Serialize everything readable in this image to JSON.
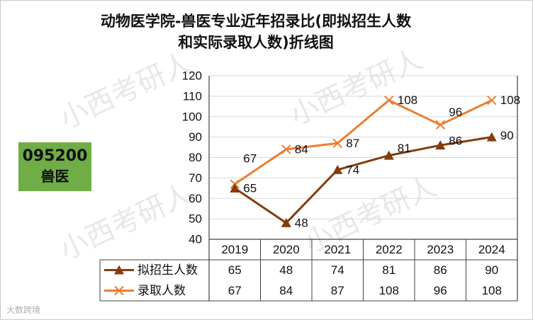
{
  "page": {
    "title_line1": "动物医学院-兽医专业近年招录比(即拟招生人数",
    "title_line2": "和实际录取人数)折线图",
    "badge_code": "095200",
    "badge_name": "兽医",
    "watermark": "小西考研人",
    "footer_mark": "大数跨境"
  },
  "chart_data": {
    "type": "line",
    "title": "动物医学院-兽医专业近年招录比(即拟招生人数和实际录取人数)折线图",
    "categories": [
      "2019",
      "2020",
      "2021",
      "2022",
      "2023",
      "2024"
    ],
    "ylim": [
      40,
      120
    ],
    "yticks": [
      40,
      50,
      60,
      70,
      80,
      90,
      100,
      110,
      120
    ],
    "gridlines": true,
    "legend_position": "data-table",
    "series": [
      {
        "name": "拟招生人数",
        "values": [
          65,
          48,
          74,
          81,
          86,
          90
        ],
        "color": "#843c0c",
        "marker": "triangle"
      },
      {
        "name": "录取人数",
        "values": [
          67,
          84,
          87,
          108,
          96,
          108
        ],
        "color": "#ed7d31",
        "marker": "x"
      }
    ]
  }
}
